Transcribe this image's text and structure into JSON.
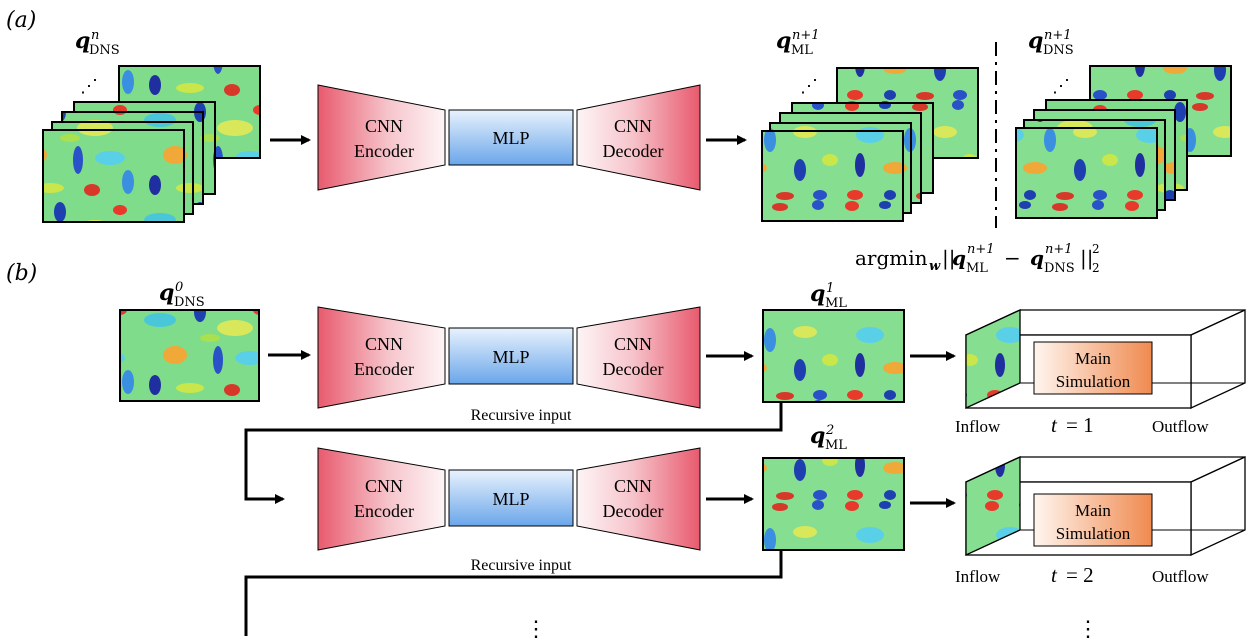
{
  "panel_a": {
    "label": "(a)",
    "input_symbol": "q",
    "input_sup": "n",
    "input_sub": "DNS",
    "stack_dots": "⋰",
    "encoder_line1": "CNN",
    "encoder_line2": "Encoder",
    "mlp": "MLP",
    "decoder_line1": "CNN",
    "decoder_line2": "Decoder",
    "ml_symbol": "q",
    "ml_sup": "n+1",
    "ml_sub": "ML",
    "dns_symbol": "q",
    "dns_sup": "n+1",
    "dns_sub": "DNS",
    "loss_argmin": "argmin",
    "loss_argmin_sub": "w",
    "loss_open": "||",
    "loss_q1": "q",
    "loss_q1_sup": "n+1",
    "loss_q1_sub": "ML",
    "loss_minus": "−",
    "loss_q2": "q",
    "loss_q2_sup": "n+1",
    "loss_q2_sub": "DNS",
    "loss_close": "||",
    "loss_sup": "2",
    "loss_sub": "2"
  },
  "panel_b": {
    "label": "(b)",
    "input_symbol": "q",
    "input_sup": "0",
    "input_sub": "DNS",
    "recursive_label": "Recursive input",
    "vdots": "⋮",
    "rows": [
      {
        "encoder_line1": "CNN",
        "encoder_line2": "Encoder",
        "mlp": "MLP",
        "decoder_line1": "CNN",
        "decoder_line2": "Decoder",
        "out_symbol": "q",
        "out_sup": "1",
        "out_sub": "ML",
        "sim_line1": "Main",
        "sim_line2": "Simulation",
        "inflow": "Inflow",
        "t_var": "t",
        "t_eq": "= 1",
        "outflow": "Outflow"
      },
      {
        "encoder_line1": "CNN",
        "encoder_line2": "Encoder",
        "mlp": "MLP",
        "decoder_line1": "CNN",
        "decoder_line2": "Decoder",
        "out_symbol": "q",
        "out_sup": "2",
        "out_sub": "ML",
        "sim_line1": "Main",
        "sim_line2": "Simulation",
        "inflow": "Inflow",
        "t_var": "t",
        "t_eq": "= 2",
        "outflow": "Outflow"
      }
    ]
  },
  "colors": {
    "encoder_red": "#e85a6e",
    "mlp_blue": "#7fb2ec",
    "sim_orange": "#f08a50",
    "arrow": "#000000"
  }
}
